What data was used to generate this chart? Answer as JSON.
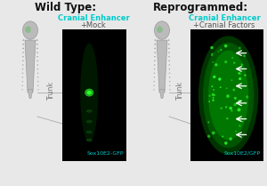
{
  "title_left": "Wild Type:",
  "title_right": "Reprogrammed:",
  "label_left_line1": "Cranial Enhancer",
  "label_left_line2": "+Mock",
  "label_right_line1": "Cranial Enhancer",
  "label_right_line2": "+Cranial Factors",
  "bottom_label_left": "Sox10E2-GFP",
  "bottom_label_right": "Sox10E2/GFP",
  "trunk_label": "Trunk",
  "bg_color": "#e8e8e8",
  "panel_bg": "#000000",
  "title_fontsize": 8.5,
  "label_fontsize": 6.0,
  "trunk_fontsize": 5.5,
  "sox_fontsize": 4.5,
  "cranial_color": "#00cccc",
  "mock_color": "#555555",
  "body_color": "#bbbbbb",
  "body_outline": "#999999",
  "dot_color": "#999999",
  "eye_color": "#88bb88",
  "gfp_bright": "#33ff33",
  "arrow_color": "#ffffff",
  "line_color": "#aaaaaa"
}
